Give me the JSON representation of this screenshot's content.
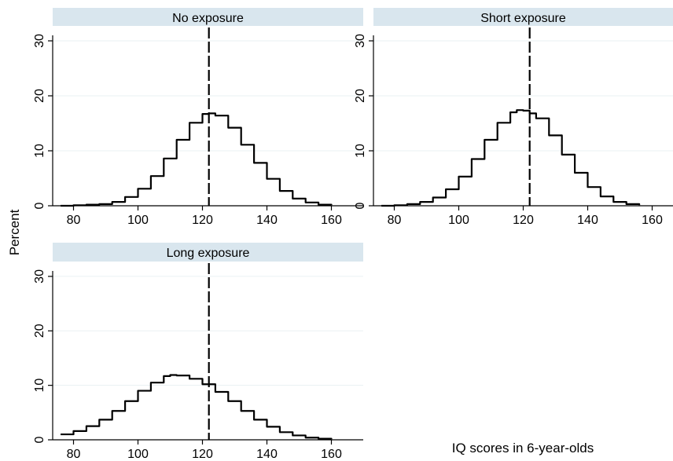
{
  "chart_data": {
    "type": "line",
    "ylabel": "Percent",
    "xlabel": "IQ scores in 6-year-olds",
    "xlim": [
      74,
      164
    ],
    "ylim": [
      0,
      31
    ],
    "xticks": [
      80,
      100,
      120,
      140,
      160
    ],
    "yticks": [
      0,
      10,
      20,
      30
    ],
    "grid": true,
    "legend": "none",
    "reference_line": {
      "x": 122,
      "style": "dashed"
    },
    "colors": {
      "strip": "#d9e6ee",
      "line": "#000000",
      "grid": "#eaf0f3"
    },
    "panels": [
      {
        "title": "No exposure",
        "x": [
          76,
          80,
          84,
          88,
          92,
          96,
          100,
          104,
          108,
          112,
          116,
          120,
          122,
          124,
          128,
          132,
          136,
          140,
          144,
          148,
          152,
          156,
          160
        ],
        "values": [
          0.0,
          0.1,
          0.2,
          0.3,
          0.7,
          1.6,
          3.1,
          5.4,
          8.6,
          12.0,
          15.1,
          16.7,
          16.8,
          16.4,
          14.2,
          11.1,
          7.8,
          4.9,
          2.7,
          1.3,
          0.6,
          0.2,
          0.1
        ]
      },
      {
        "title": "Short exposure",
        "x": [
          76,
          80,
          84,
          88,
          92,
          96,
          100,
          104,
          108,
          112,
          116,
          118,
          120,
          122,
          124,
          128,
          132,
          136,
          140,
          144,
          148,
          152,
          156
        ],
        "values": [
          0.0,
          0.1,
          0.3,
          0.7,
          1.5,
          3.0,
          5.3,
          8.5,
          12.0,
          15.1,
          17.0,
          17.4,
          17.3,
          16.8,
          15.9,
          12.8,
          9.3,
          6.0,
          3.4,
          1.7,
          0.7,
          0.3,
          0.1
        ]
      },
      {
        "title": "Long exposure",
        "x": [
          76,
          80,
          84,
          88,
          92,
          96,
          100,
          104,
          108,
          110,
          112,
          116,
          120,
          124,
          128,
          132,
          136,
          140,
          144,
          148,
          152,
          156,
          160
        ],
        "values": [
          1.0,
          1.6,
          2.5,
          3.7,
          5.3,
          7.1,
          9.0,
          10.5,
          11.7,
          11.9,
          11.8,
          11.2,
          10.2,
          8.8,
          7.1,
          5.3,
          3.7,
          2.4,
          1.4,
          0.8,
          0.4,
          0.2,
          0.1
        ]
      }
    ]
  }
}
